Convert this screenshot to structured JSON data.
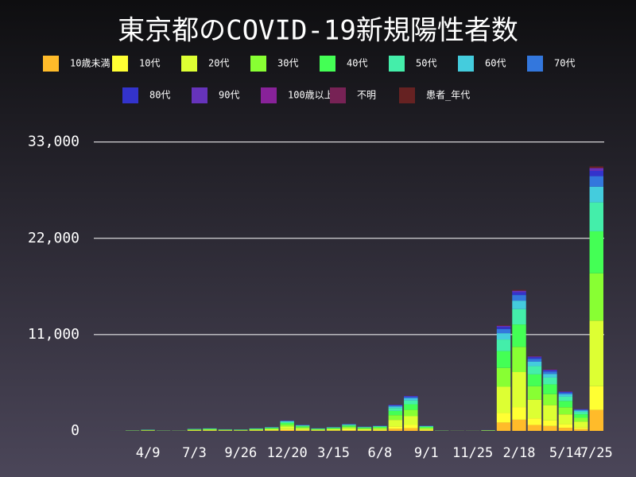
{
  "chart_data": {
    "type": "stacked_bar",
    "title": "東京都のCOVID-19新規陽性者数",
    "categories": [
      null,
      null,
      null,
      "4/9",
      null,
      null,
      "7/3",
      null,
      null,
      "9/26",
      null,
      null,
      "12/20",
      null,
      null,
      "3/15",
      null,
      null,
      "6/8",
      null,
      null,
      "9/1",
      null,
      null,
      "11/25",
      null,
      null,
      "2/18",
      null,
      null,
      "5/14",
      null,
      "7/25"
    ],
    "ylim": [
      0,
      35600
    ],
    "yticks": [
      0,
      {
        "value": 11000,
        "label": "11,000"
      },
      {
        "value": 22000,
        "label": "22,000"
      },
      {
        "value": 33000,
        "label": "33,000"
      }
    ],
    "grid": true,
    "series": [
      {
        "name": "10歳未満",
        "color": "#ffbb2a",
        "values": [
          0,
          0,
          5,
          12,
          4,
          3,
          20,
          24,
          16,
          14,
          24,
          36,
          96,
          56,
          24,
          36,
          64,
          40,
          48,
          240,
          320,
          48,
          4,
          2,
          2,
          8,
          960,
          1280,
          680,
          560,
          360,
          200,
          2400
        ]
      },
      {
        "name": "10代",
        "color": "#ffff33",
        "values": [
          0,
          0,
          5,
          14,
          5,
          4,
          22,
          27,
          18,
          16,
          27,
          40,
          108,
          63,
          27,
          40,
          72,
          45,
          54,
          270,
          360,
          54,
          5,
          2,
          2,
          9,
          1080,
          1440,
          765,
          630,
          405,
          225,
          2700
        ]
      },
      {
        "name": "20代",
        "color": "#ddff33",
        "values": [
          0,
          1,
          15,
          38,
          12,
          10,
          62,
          75,
          50,
          45,
          75,
          112,
          300,
          175,
          75,
          112,
          200,
          125,
          150,
          750,
          1000,
          150,
          12,
          5,
          5,
          25,
          3000,
          4000,
          2125,
          1750,
          1125,
          625,
          7500
        ]
      },
      {
        "name": "30代",
        "color": "#88ff33",
        "values": [
          0,
          1,
          11,
          27,
          9,
          7,
          45,
          54,
          36,
          32,
          54,
          81,
          216,
          126,
          54,
          81,
          144,
          90,
          108,
          540,
          720,
          108,
          9,
          4,
          4,
          18,
          2160,
          2880,
          1530,
          1260,
          810,
          450,
          5400
        ]
      },
      {
        "name": "40代",
        "color": "#44ff55",
        "values": [
          0,
          1,
          10,
          24,
          8,
          6,
          40,
          48,
          32,
          29,
          48,
          72,
          192,
          112,
          48,
          72,
          128,
          80,
          96,
          480,
          640,
          96,
          8,
          3,
          3,
          16,
          1920,
          2560,
          1360,
          1120,
          720,
          400,
          4800
        ]
      },
      {
        "name": "50代",
        "color": "#44eeaa",
        "values": [
          0,
          1,
          7,
          17,
          5,
          4,
          28,
          33,
          22,
          20,
          33,
          50,
          132,
          77,
          33,
          50,
          88,
          55,
          66,
          330,
          440,
          66,
          5,
          2,
          2,
          11,
          1320,
          1760,
          935,
          770,
          495,
          275,
          3300
        ]
      },
      {
        "name": "60代",
        "color": "#44ccdd",
        "values": [
          0,
          1,
          4,
          9,
          3,
          2,
          15,
          18,
          12,
          11,
          18,
          27,
          72,
          42,
          18,
          27,
          48,
          30,
          36,
          180,
          240,
          36,
          3,
          1,
          1,
          6,
          720,
          960,
          510,
          420,
          270,
          150,
          1800
        ]
      },
      {
        "name": "70代",
        "color": "#3377dd",
        "values": [
          0,
          0,
          2,
          6,
          2,
          2,
          10,
          12,
          8,
          7,
          12,
          18,
          48,
          28,
          12,
          18,
          32,
          20,
          24,
          120,
          160,
          24,
          2,
          1,
          1,
          4,
          480,
          640,
          340,
          280,
          180,
          100,
          1200
        ]
      },
      {
        "name": "80代",
        "color": "#3333cc",
        "values": [
          0,
          0,
          1,
          3,
          1,
          1,
          5,
          6,
          4,
          4,
          6,
          9,
          24,
          14,
          6,
          9,
          16,
          10,
          12,
          60,
          80,
          12,
          1,
          0,
          0,
          2,
          240,
          320,
          170,
          140,
          90,
          50,
          600
        ]
      },
      {
        "name": "90代",
        "color": "#6633bb",
        "values": [
          0,
          0,
          1,
          2,
          1,
          0,
          2,
          3,
          2,
          2,
          3,
          4,
          12,
          7,
          3,
          4,
          8,
          5,
          6,
          30,
          40,
          6,
          1,
          0,
          0,
          1,
          120,
          160,
          85,
          70,
          45,
          25,
          300
        ]
      },
      {
        "name": "100歳以上",
        "color": "#882299",
        "values": [
          0,
          0,
          0,
          0,
          0,
          0,
          0,
          0,
          0,
          0,
          0,
          0,
          1,
          0,
          0,
          0,
          0,
          0,
          0,
          1,
          2,
          0,
          0,
          0,
          0,
          0,
          6,
          8,
          4,
          3,
          2,
          1,
          15
        ]
      },
      {
        "name": "不明",
        "color": "#772255",
        "values": [
          0,
          0,
          0,
          0,
          0,
          0,
          0,
          0,
          0,
          0,
          0,
          1,
          2,
          1,
          0,
          1,
          1,
          1,
          1,
          4,
          6,
          1,
          0,
          0,
          0,
          0,
          18,
          24,
          13,
          10,
          7,
          4,
          45
        ]
      },
      {
        "name": "患者_年代",
        "color": "#662222",
        "values": [
          0,
          0,
          0,
          1,
          0,
          0,
          1,
          2,
          1,
          1,
          1,
          2,
          6,
          3,
          1,
          2,
          4,
          2,
          3,
          15,
          20,
          3,
          0,
          0,
          0,
          0,
          60,
          80,
          42,
          35,
          22,
          12,
          150
        ]
      }
    ]
  }
}
